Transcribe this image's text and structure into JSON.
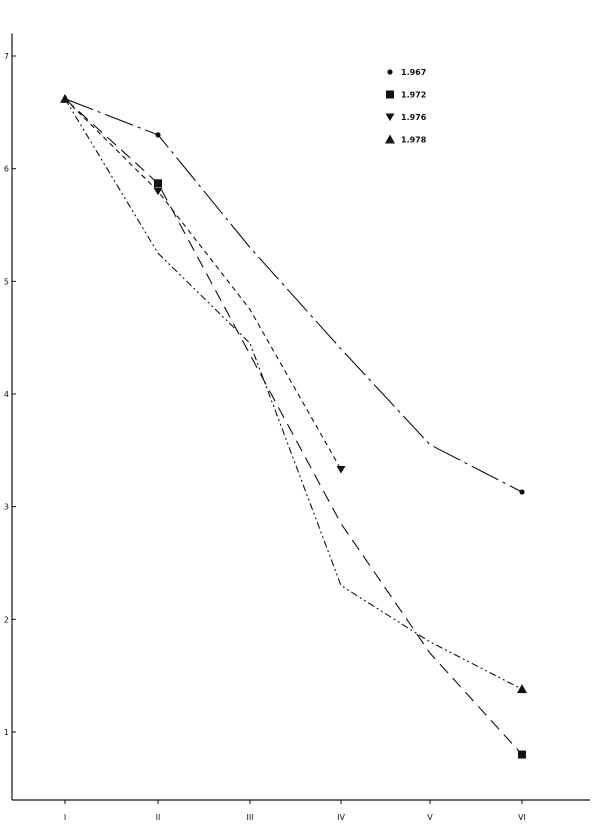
{
  "chart_data": {
    "type": "line",
    "title": "",
    "xlabel": "",
    "ylabel": "",
    "categories": [
      "I",
      "II",
      "III",
      "IV",
      "V",
      "VI"
    ],
    "y_ticks": [
      "1",
      "2",
      "3",
      "4",
      "5",
      "6",
      "7"
    ],
    "ylim": [
      0.05,
      7.2
    ],
    "grid": false,
    "legend": "top-right",
    "series": [
      {
        "name": "1.967",
        "marker": "circle",
        "values": [
          6.62,
          6.3,
          5.3,
          4.4,
          3.55,
          3.13
        ],
        "dash": "30 5 3 5"
      },
      {
        "name": "1.972",
        "marker": "square",
        "values": [
          6.62,
          5.87,
          4.35,
          2.85,
          1.7,
          0.8
        ],
        "dash": "12 7"
      },
      {
        "name": "1.976",
        "marker": "triangle-down",
        "values": [
          6.62,
          5.8,
          4.75,
          3.33,
          null,
          null
        ],
        "dash": "5 4"
      },
      {
        "name": "1.978",
        "marker": "triangle-up",
        "values": [
          6.62,
          5.25,
          4.45,
          2.3,
          1.8,
          1.38
        ],
        "dash": "7 3 2 3 2 3"
      }
    ]
  }
}
